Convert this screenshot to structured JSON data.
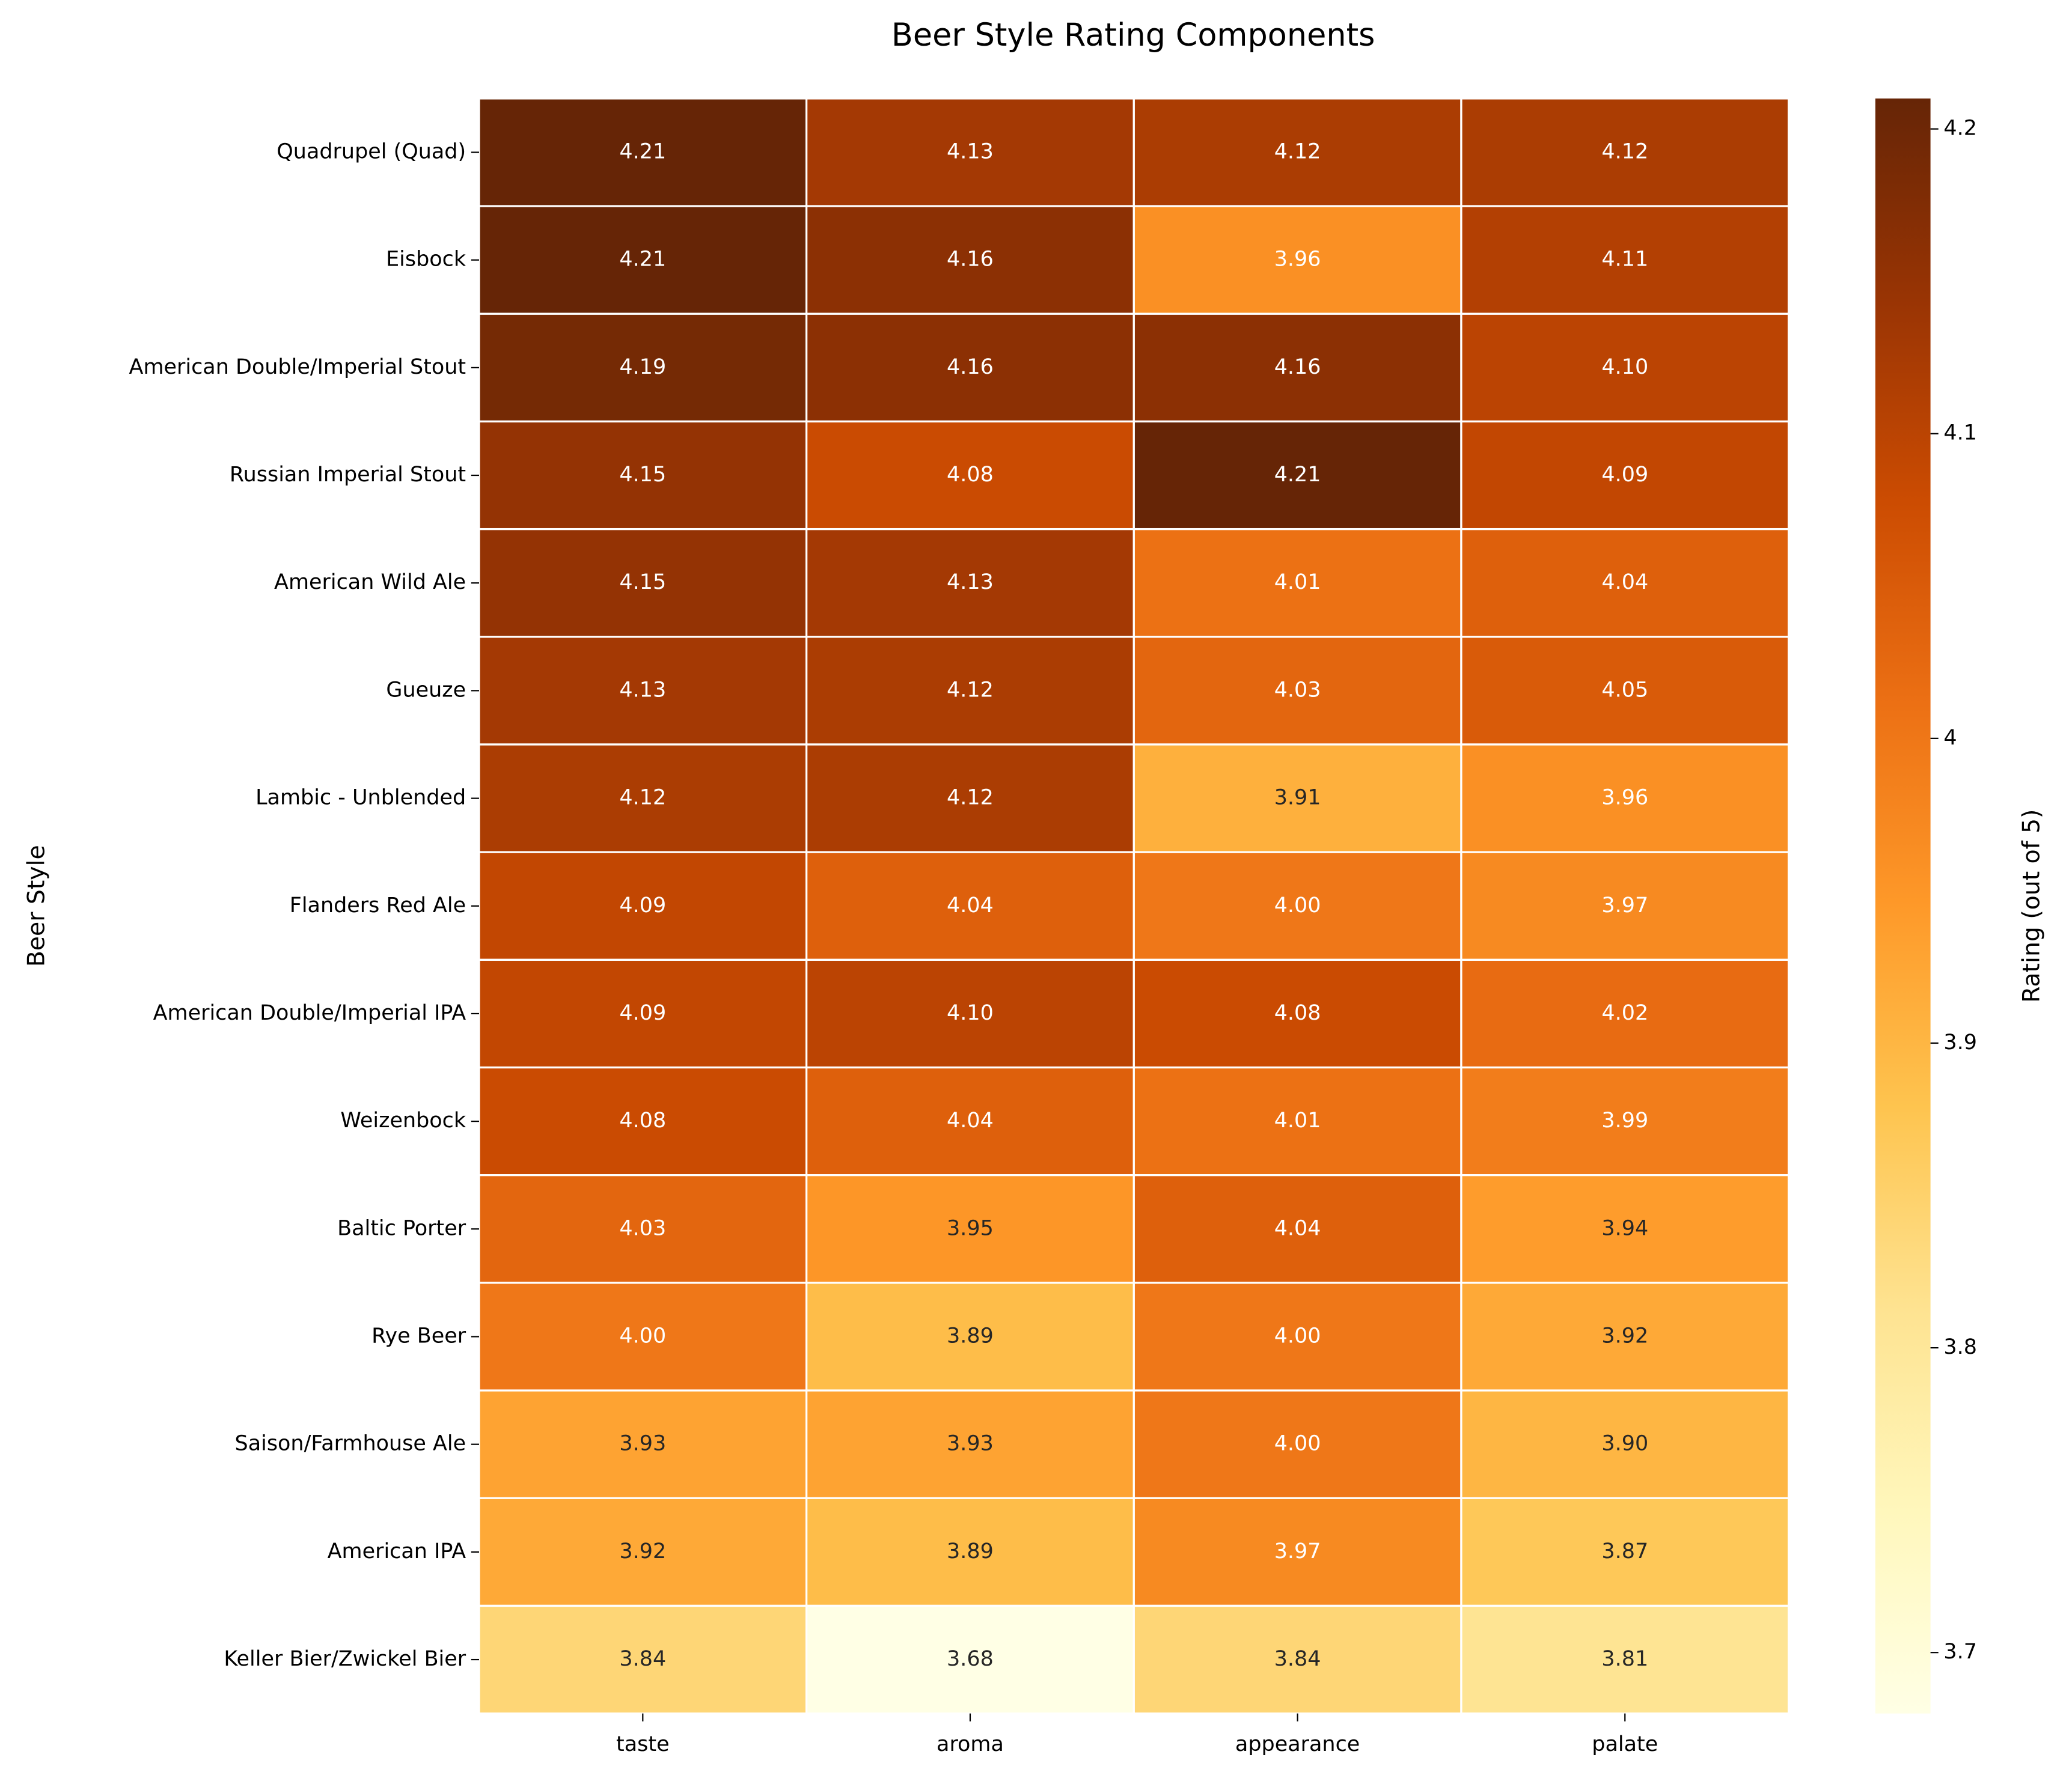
{
  "chart_data": {
    "type": "heatmap",
    "title": "Beer Style Rating Components",
    "y_label": "Beer Style",
    "colorbar_label": "Rating (out of 5)",
    "x": [
      "taste",
      "aroma",
      "appearance",
      "palate"
    ],
    "y": [
      "Quadrupel (Quad)",
      "Eisbock",
      "American Double/Imperial Stout",
      "Russian Imperial Stout",
      "American Wild Ale",
      "Gueuze",
      "Lambic - Unblended",
      "Flanders Red Ale",
      "American Double/Imperial IPA",
      "Weizenbock",
      "Baltic Porter",
      "Rye Beer",
      "Saison/Farmhouse Ale",
      "American IPA",
      "Keller Bier/Zwickel Bier"
    ],
    "values": [
      [
        4.21,
        4.13,
        4.12,
        4.12
      ],
      [
        4.21,
        4.16,
        3.96,
        4.11
      ],
      [
        4.19,
        4.16,
        4.16,
        4.1
      ],
      [
        4.15,
        4.08,
        4.21,
        4.09
      ],
      [
        4.15,
        4.13,
        4.01,
        4.04
      ],
      [
        4.13,
        4.12,
        4.03,
        4.05
      ],
      [
        4.12,
        4.12,
        3.91,
        3.96
      ],
      [
        4.09,
        4.04,
        4.0,
        3.97
      ],
      [
        4.09,
        4.1,
        4.08,
        4.02
      ],
      [
        4.08,
        4.04,
        4.01,
        3.99
      ],
      [
        4.03,
        3.95,
        4.04,
        3.94
      ],
      [
        4.0,
        3.89,
        4.0,
        3.92
      ],
      [
        3.93,
        3.93,
        4.0,
        3.9
      ],
      [
        3.92,
        3.89,
        3.97,
        3.87
      ],
      [
        3.84,
        3.68,
        3.84,
        3.81
      ]
    ],
    "value_labels": [
      [
        "4.21",
        "4.13",
        "4.12",
        "4.12"
      ],
      [
        "4.21",
        "4.16",
        "3.96",
        "4.11"
      ],
      [
        "4.19",
        "4.16",
        "4.16",
        "4.10"
      ],
      [
        "4.15",
        "4.08",
        "4.21",
        "4.09"
      ],
      [
        "4.15",
        "4.13",
        "4.01",
        "4.04"
      ],
      [
        "4.13",
        "4.12",
        "4.03",
        "4.05"
      ],
      [
        "4.12",
        "4.12",
        "3.91",
        "3.96"
      ],
      [
        "4.09",
        "4.04",
        "4.00",
        "3.97"
      ],
      [
        "4.09",
        "4.10",
        "4.08",
        "4.02"
      ],
      [
        "4.08",
        "4.04",
        "4.01",
        "3.99"
      ],
      [
        "4.03",
        "3.95",
        "4.04",
        "3.94"
      ],
      [
        "4.00",
        "3.89",
        "4.00",
        "3.92"
      ],
      [
        "3.93",
        "3.93",
        "4.00",
        "3.90"
      ],
      [
        "3.92",
        "3.89",
        "3.97",
        "3.87"
      ],
      [
        "3.84",
        "3.68",
        "3.84",
        "3.81"
      ]
    ],
    "colormap": [
      "#ffffe5",
      "#fff7bc",
      "#fee391",
      "#fec44f",
      "#fe9929",
      "#ec7014",
      "#cc4c02",
      "#993404",
      "#662506"
    ],
    "clim": [
      3.68,
      4.21
    ],
    "cticks": [
      3.7,
      3.8,
      3.9,
      4.0,
      4.1,
      4.2
    ]
  }
}
